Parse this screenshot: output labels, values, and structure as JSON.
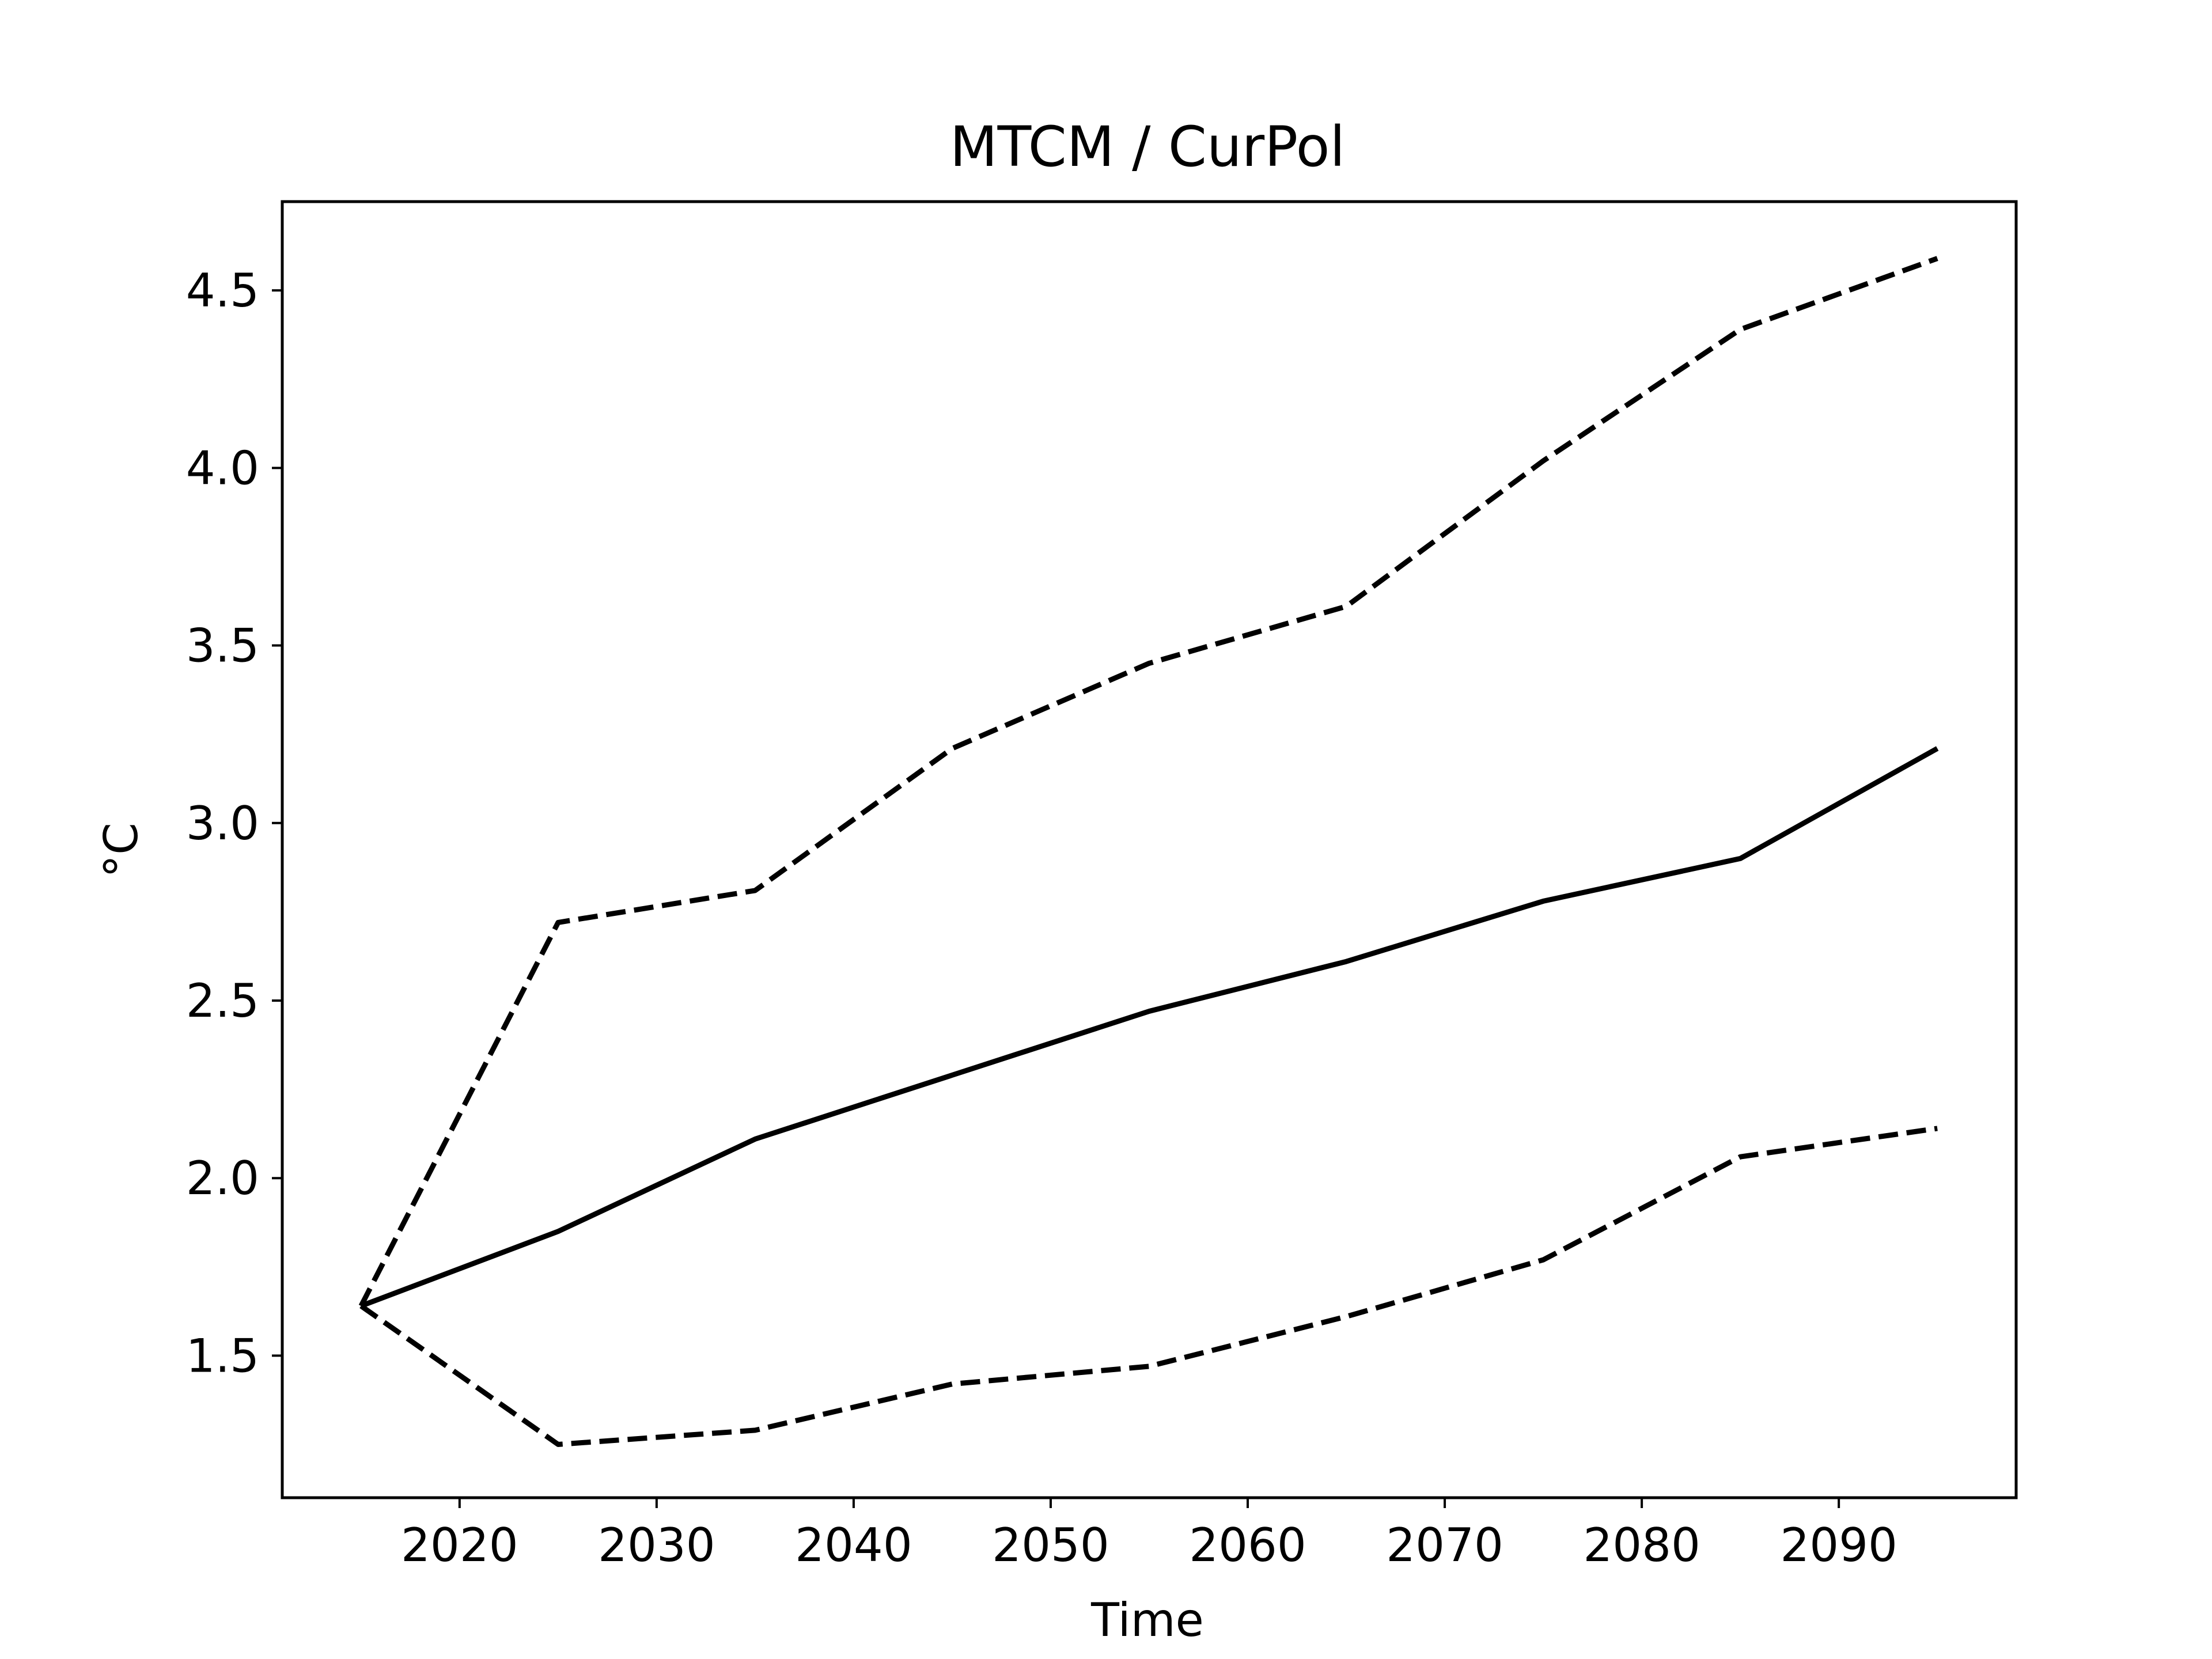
{
  "chart_data": {
    "type": "line",
    "title": "MTCM / CurPol",
    "xlabel": "Time",
    "ylabel": "°C",
    "xlim": [
      2011,
      2099
    ],
    "ylim": [
      1.1,
      4.75
    ],
    "x": [
      2015,
      2025,
      2035,
      2045,
      2055,
      2065,
      2075,
      2085,
      2095
    ],
    "xticks": [
      2020,
      2030,
      2040,
      2050,
      2060,
      2070,
      2080,
      2090
    ],
    "xtick_labels": [
      "2020",
      "2030",
      "2040",
      "2050",
      "2060",
      "2070",
      "2080",
      "2090"
    ],
    "yticks": [
      1.5,
      2.0,
      2.5,
      3.0,
      3.5,
      4.0,
      4.5
    ],
    "ytick_labels": [
      "1.5",
      "2.0",
      "2.5",
      "3.0",
      "3.5",
      "4.0",
      "4.5"
    ],
    "grid": false,
    "legend": "none",
    "series": [
      {
        "style": "solid",
        "color": "#000000",
        "values": [
          1.64,
          1.85,
          2.11,
          2.29,
          2.47,
          2.61,
          2.78,
          2.9,
          3.21
        ]
      },
      {
        "style": "dashed",
        "color": "#000000",
        "values": [
          1.64,
          2.72,
          2.81,
          3.21,
          3.45,
          3.61,
          4.02,
          4.39,
          4.59
        ]
      },
      {
        "style": "dashed",
        "color": "#000000",
        "values": [
          1.64,
          1.25,
          1.29,
          1.42,
          1.47,
          1.61,
          1.77,
          2.06,
          2.14
        ]
      }
    ]
  }
}
